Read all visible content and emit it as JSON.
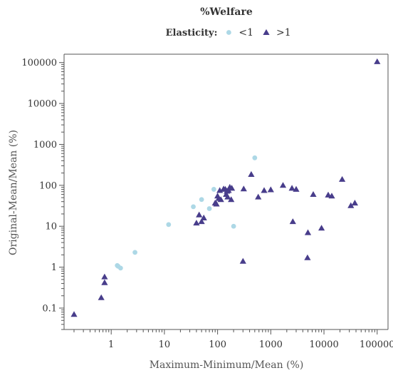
{
  "chart_data": {
    "type": "scatter",
    "title": "%Welfare",
    "xlabel": "Maximum-Minimum/Mean (%)",
    "ylabel": "Original-Mean/Mean (%)",
    "x_scale": "log",
    "y_scale": "log",
    "xlim": [
      0.13,
      160000
    ],
    "ylim": [
      0.03,
      160000
    ],
    "grid": false,
    "legend": {
      "title": "Elasticity:",
      "placement": "top-center"
    },
    "x_tick_labels": [
      "1",
      "10",
      "100",
      "1000",
      "10000",
      "100000"
    ],
    "y_tick_labels": [
      "0.1",
      "1",
      "10",
      "100",
      "1000",
      "10000",
      "100000"
    ],
    "series": [
      {
        "name": "<1",
        "marker": "circle",
        "color": "#add8e6",
        "points": [
          [
            1.3,
            1.1
          ],
          [
            1.35,
            1.05
          ],
          [
            1.5,
            0.95
          ],
          [
            2.8,
            2.3
          ],
          [
            12,
            11
          ],
          [
            35,
            30
          ],
          [
            50,
            45
          ],
          [
            70,
            27
          ],
          [
            85,
            80
          ],
          [
            200,
            10
          ],
          [
            500,
            470
          ]
        ]
      },
      {
        "name": ">1",
        "marker": "triangle",
        "color": "#483d8b",
        "points": [
          [
            0.2,
            0.07
          ],
          [
            0.65,
            0.18
          ],
          [
            0.75,
            0.42
          ],
          [
            0.75,
            0.58
          ],
          [
            40,
            12
          ],
          [
            45,
            19
          ],
          [
            50,
            13
          ],
          [
            55,
            16
          ],
          [
            90,
            37
          ],
          [
            95,
            35
          ],
          [
            100,
            55
          ],
          [
            105,
            48
          ],
          [
            110,
            75
          ],
          [
            115,
            45
          ],
          [
            130,
            82
          ],
          [
            140,
            80
          ],
          [
            145,
            60
          ],
          [
            150,
            72
          ],
          [
            155,
            52
          ],
          [
            160,
            75
          ],
          [
            170,
            90
          ],
          [
            180,
            45
          ],
          [
            185,
            85
          ],
          [
            300,
            1.4
          ],
          [
            310,
            82
          ],
          [
            430,
            185
          ],
          [
            580,
            52
          ],
          [
            750,
            75
          ],
          [
            1000,
            78
          ],
          [
            1700,
            100
          ],
          [
            2500,
            85
          ],
          [
            2600,
            13
          ],
          [
            3000,
            80
          ],
          [
            4900,
            1.7
          ],
          [
            5000,
            7
          ],
          [
            6300,
            60
          ],
          [
            9000,
            9
          ],
          [
            12000,
            58
          ],
          [
            14000,
            55
          ],
          [
            22000,
            140
          ],
          [
            32000,
            32
          ],
          [
            38000,
            37
          ],
          [
            100000,
            105000
          ]
        ]
      }
    ]
  }
}
